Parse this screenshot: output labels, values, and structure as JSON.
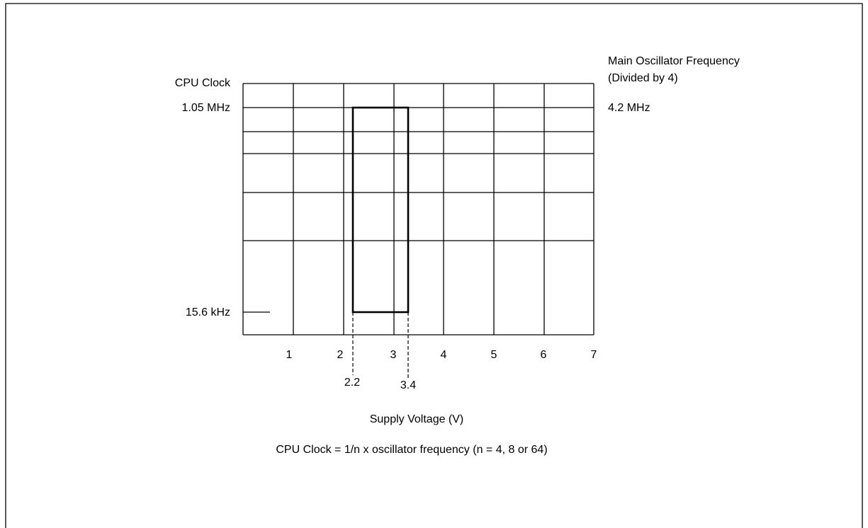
{
  "left_axis": {
    "title": "CPU Clock",
    "top": "1.05 MHz",
    "bottom": "15.6 kHz"
  },
  "right_axis": {
    "title_line1": "Main Oscillator Frequency",
    "title_line2": "(Divided by 4)",
    "top": "4.2 MHz"
  },
  "x_axis": {
    "ticks": [
      "1",
      "2",
      "3",
      "4",
      "5",
      "6",
      "7"
    ],
    "title": "Supply Voltage (V)"
  },
  "range_markers": [
    "2.2",
    "3.4"
  ],
  "caption": "CPU Clock = 1/n x oscillator frequency (n = 4, 8 or 64)"
}
